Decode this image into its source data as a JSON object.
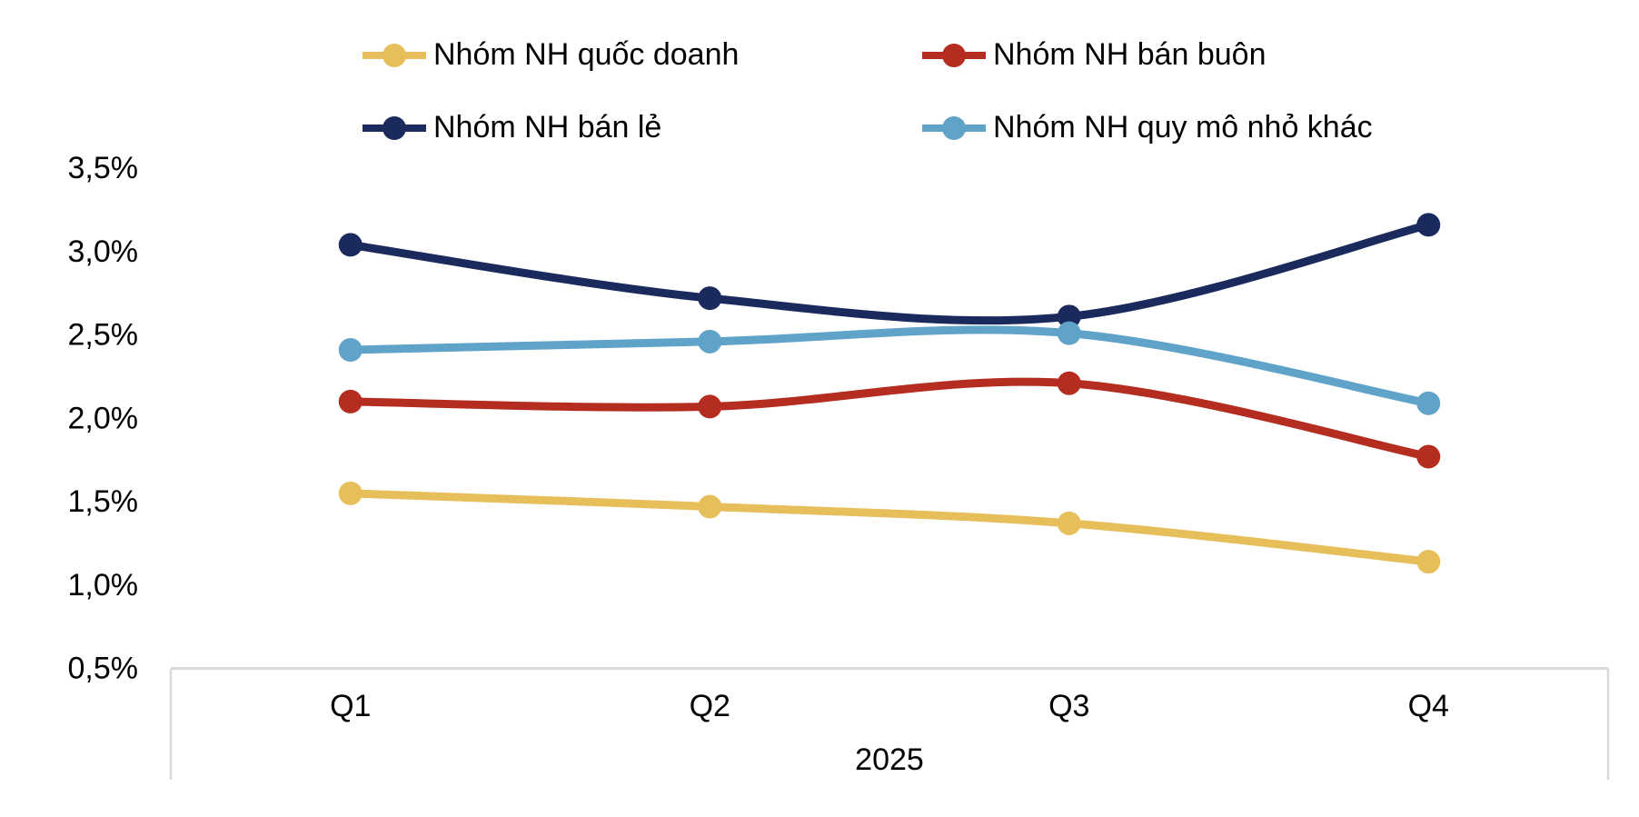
{
  "chart_data": {
    "type": "line",
    "categories": [
      "Q1",
      "Q2",
      "Q3",
      "Q4"
    ],
    "x_group_label": "2025",
    "series": [
      {
        "name": "Nhóm NH quốc doanh",
        "color": "#E6BF5B",
        "values": [
          1.55,
          1.47,
          1.37,
          1.14
        ]
      },
      {
        "name": "Nhóm NH bán buôn",
        "color": "#B42D20",
        "values": [
          2.1,
          2.07,
          2.21,
          1.77
        ]
      },
      {
        "name": "Nhóm NH bán lẻ",
        "color": "#1B2A5C",
        "values": [
          3.04,
          2.72,
          2.61,
          3.16
        ]
      },
      {
        "name": "Nhóm NH quy mô nhỏ khác",
        "color": "#60A3C8",
        "values": [
          2.41,
          2.46,
          2.51,
          2.09
        ]
      }
    ],
    "y_axis": {
      "min": 0.5,
      "max": 3.5,
      "step": 0.5,
      "tick_labels": [
        "3,5%",
        "3,0%",
        "2,5%",
        "2,0%",
        "1,5%",
        "1,0%",
        "0,5%"
      ]
    },
    "legend_position": "top",
    "grid": false,
    "line_smoothing": true,
    "axis_color": "#D9D9D9",
    "text_color": "#000000",
    "title": "",
    "xlabel": "2025",
    "ylabel": ""
  }
}
